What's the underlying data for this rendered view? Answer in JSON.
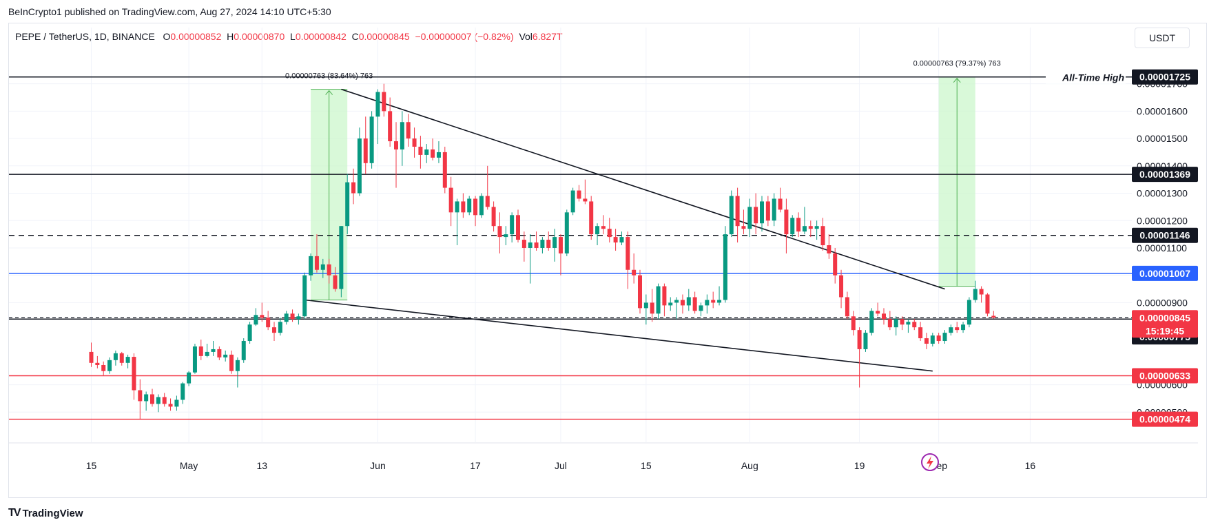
{
  "header": {
    "publish_text": "BeInCrypto1 published on TradingView.com, Aug 27, 2024 14:10 UTC+5:30",
    "symbol": "PEPE / TetherUS, 1D, BINANCE",
    "o_label": "O",
    "o_value": "0.00000852",
    "h_label": "H",
    "h_value": "0.00000870",
    "l_label": "L",
    "l_value": "0.00000842",
    "c_label": "C",
    "c_value": "0.00000845",
    "change": "−0.00000007 (−0.82%)",
    "vol_label": "Vol",
    "vol_value": "6.827T",
    "currency": "USDT"
  },
  "footer": {
    "brand": "TradingView",
    "logo": "TV"
  },
  "colors": {
    "up": "#089981",
    "down": "#f23645",
    "blue": "#2962ff",
    "green_box": "#ccf7cc",
    "green_line": "#4caf50"
  },
  "chart_data": {
    "type": "candlestick",
    "y_axis": {
      "min": 3.9e-06,
      "max": 1.83e-05,
      "tick_values": [
        5e-06,
        6e-06,
        9e-06,
        1e-05,
        1.1e-05,
        1.2e-05,
        1.3e-05,
        1.4e-05,
        1.5e-05,
        1.6e-05,
        1.7e-05
      ],
      "tick_labels": [
        "0.00000500",
        "0.00000600",
        "0.00000900",
        "0.00001000",
        "0.00001100",
        "0.00001200",
        "0.00001300",
        "0.00001400",
        "0.00001500",
        "0.00001600",
        "0.00001700"
      ]
    },
    "x_axis": {
      "ticks": [
        {
          "day": 0,
          "label": "15"
        },
        {
          "day": 16,
          "label": "May"
        },
        {
          "day": 28,
          "label": "13"
        },
        {
          "day": 47,
          "label": "Jun"
        },
        {
          "day": 63,
          "label": "17"
        },
        {
          "day": 77,
          "label": "Jul"
        },
        {
          "day": 91,
          "label": "15"
        },
        {
          "day": 108,
          "label": "Aug"
        },
        {
          "day": 126,
          "label": "19"
        },
        {
          "day": 139,
          "label": "Sep"
        },
        {
          "day": 154,
          "label": "16"
        }
      ]
    },
    "candles": [
      [
        7.2e-06,
        7.54e-06,
        6.65e-06,
        6.8e-06
      ],
      [
        6.8e-06,
        7.05e-06,
        6.6e-06,
        6.72e-06
      ],
      [
        6.72e-06,
        6.85e-06,
        6.35e-06,
        6.5e-06
      ],
      [
        6.5e-06,
        7e-06,
        6.4e-06,
        6.9e-06
      ],
      [
        6.9e-06,
        7.25e-06,
        6.7e-06,
        7.15e-06
      ],
      [
        7.15e-06,
        7.2e-06,
        6.7e-06,
        6.8e-06
      ],
      [
        6.8e-06,
        7.1e-06,
        6.6e-06,
        7.02e-06
      ],
      [
        7.02e-06,
        7.15e-06,
        5.45e-06,
        5.8e-06
      ],
      [
        5.8e-06,
        6.2e-06,
        4.75e-06,
        5.4e-06
      ],
      [
        5.4e-06,
        5.75e-06,
        5.05e-06,
        5.65e-06
      ],
      [
        5.65e-06,
        5.85e-06,
        5.2e-06,
        5.3e-06
      ],
      [
        5.3e-06,
        5.65e-06,
        5e-06,
        5.55e-06
      ],
      [
        5.55e-06,
        5.7e-06,
        5.2e-06,
        5.3e-06
      ],
      [
        5.3e-06,
        5.5e-06,
        5.05e-06,
        5.2e-06
      ],
      [
        5.2e-06,
        5.6e-06,
        5.05e-06,
        5.45e-06
      ],
      [
        5.45e-06,
        6.1e-06,
        5.3e-06,
        6.05e-06
      ],
      [
        6.05e-06,
        6.5e-06,
        5.95e-06,
        6.45e-06
      ],
      [
        6.45e-06,
        7.5e-06,
        6.4e-06,
        7.4e-06
      ],
      [
        7.4e-06,
        7.65e-06,
        6.9e-06,
        7.05e-06
      ],
      [
        7.05e-06,
        7.5e-06,
        7e-06,
        7.2e-06
      ],
      [
        7.2e-06,
        7.6e-06,
        7.05e-06,
        7.3e-06
      ],
      [
        7.3e-06,
        7.4e-06,
        6.9e-06,
        7e-06
      ],
      [
        7e-06,
        7.25e-06,
        6.85e-06,
        7.1e-06
      ],
      [
        7.1e-06,
        7.25e-06,
        6.4e-06,
        6.5e-06
      ],
      [
        6.5e-06,
        7e-06,
        5.9e-06,
        6.9e-06
      ],
      [
        6.9e-06,
        7.7e-06,
        6.8e-06,
        7.6e-06
      ],
      [
        7.6e-06,
        8.3e-06,
        7.5e-06,
        8.2e-06
      ],
      [
        8.2e-06,
        8.8e-06,
        8.15e-06,
        8.55e-06
      ],
      [
        8.55e-06,
        9e-06,
        8.3e-06,
        8.45e-06
      ],
      [
        8.45e-06,
        8.7e-06,
        8e-06,
        8.1e-06
      ],
      [
        8.1e-06,
        8.3e-06,
        7.6e-06,
        7.9e-06
      ],
      [
        7.9e-06,
        8.45e-06,
        7.8e-06,
        8.3e-06
      ],
      [
        8.3e-06,
        8.7e-06,
        8.2e-06,
        8.6e-06
      ],
      [
        8.6e-06,
        8.75e-06,
        8.3e-06,
        8.4e-06
      ],
      [
        8.4e-06,
        8.6e-06,
        8.2e-06,
        8.5e-06
      ],
      [
        8.5e-06,
        1.01e-05,
        8.4e-06,
        1e-05
      ],
      [
        1e-05,
        1.08e-05,
        9.8e-06,
        1.07e-05
      ],
      [
        1.07e-05,
        1.15e-05,
        1.01e-05,
        1.02e-05
      ],
      [
        1.02e-05,
        1.06e-05,
        9.9e-06,
        1.04e-05
      ],
      [
        1.04e-05,
        1.06e-05,
        9.7e-06,
        1e-05
      ],
      [
        1e-05,
        1.03e-05,
        9.4e-06,
        9.5e-06
      ],
      [
        9.5e-06,
        1.18e-05,
        9.2e-06,
        1.18e-05
      ],
      [
        1.18e-05,
        1.37e-05,
        1.15e-05,
        1.34e-05
      ],
      [
        1.34e-05,
        1.39e-05,
        1.26e-05,
        1.3e-05
      ],
      [
        1.3e-05,
        1.54e-05,
        1.29e-05,
        1.5e-05
      ],
      [
        1.5e-05,
        1.58e-05,
        1.37e-05,
        1.41e-05
      ],
      [
        1.41e-05,
        1.6e-05,
        1.39e-05,
        1.58e-05
      ],
      [
        1.58e-05,
        1.68e-05,
        1.48e-05,
        1.67e-05
      ],
      [
        1.67e-05,
        1.7e-05,
        1.58e-05,
        1.6e-05
      ],
      [
        1.6e-05,
        1.65e-05,
        1.47e-05,
        1.49e-05
      ],
      [
        1.49e-05,
        1.56e-05,
        1.32e-05,
        1.46e-05
      ],
      [
        1.46e-05,
        1.6e-05,
        1.4e-05,
        1.56e-05
      ],
      [
        1.56e-05,
        1.59e-05,
        1.47e-05,
        1.5e-05
      ],
      [
        1.5e-05,
        1.54e-05,
        1.43e-05,
        1.47e-05
      ],
      [
        1.47e-05,
        1.51e-05,
        1.39e-05,
        1.44e-05
      ],
      [
        1.44e-05,
        1.48e-05,
        1.41e-05,
        1.46e-05
      ],
      [
        1.46e-05,
        1.5e-05,
        1.42e-05,
        1.43e-05
      ],
      [
        1.43e-05,
        1.49e-05,
        1.41e-05,
        1.45e-05
      ],
      [
        1.45e-05,
        1.47e-05,
        1.3e-05,
        1.32e-05
      ],
      [
        1.32e-05,
        1.36e-05,
        1.18e-05,
        1.23e-05
      ],
      [
        1.23e-05,
        1.28e-05,
        1.11e-05,
        1.27e-05
      ],
      [
        1.27e-05,
        1.3e-05,
        1.21e-05,
        1.23e-05
      ],
      [
        1.23e-05,
        1.29e-05,
        1.22e-05,
        1.28e-05
      ],
      [
        1.28e-05,
        1.29e-05,
        1.18e-05,
        1.22e-05
      ],
      [
        1.22e-05,
        1.3e-05,
        1.21e-05,
        1.29e-05
      ],
      [
        1.29e-05,
        1.4e-05,
        1.24e-05,
        1.25e-05
      ],
      [
        1.25e-05,
        1.27e-05,
        1.16e-05,
        1.18e-05
      ],
      [
        1.18e-05,
        1.23e-05,
        1.08e-05,
        1.14e-05
      ],
      [
        1.14e-05,
        1.18e-05,
        1.11e-05,
        1.15e-05
      ],
      [
        1.15e-05,
        1.23e-05,
        1.12e-05,
        1.22e-05
      ],
      [
        1.22e-05,
        1.24e-05,
        1.12e-05,
        1.13e-05
      ],
      [
        1.13e-05,
        1.16e-05,
        1.05e-05,
        1.1e-05
      ],
      [
        1.1e-05,
        1.15e-05,
        9.7e-06,
        1.12e-05
      ],
      [
        1.12e-05,
        1.16e-05,
        1.09e-05,
        1.1e-05
      ],
      [
        1.1e-05,
        1.14e-05,
        1.08e-05,
        1.13e-05
      ],
      [
        1.13e-05,
        1.16e-05,
        1.09e-05,
        1.1e-05
      ],
      [
        1.1e-05,
        1.17e-05,
        1.05e-05,
        1.14e-05
      ],
      [
        1.14e-05,
        1.15e-05,
        1e-05,
        1.08e-05
      ],
      [
        1.08e-05,
        1.24e-05,
        1.07e-05,
        1.23e-05
      ],
      [
        1.23e-05,
        1.32e-05,
        1.22e-05,
        1.31e-05
      ],
      [
        1.31e-05,
        1.33e-05,
        1.27e-05,
        1.28e-05
      ],
      [
        1.28e-05,
        1.35e-05,
        1.26e-05,
        1.27e-05
      ],
      [
        1.27e-05,
        1.29e-05,
        1.13e-05,
        1.15e-05
      ],
      [
        1.15e-05,
        1.19e-05,
        1.11e-05,
        1.18e-05
      ],
      [
        1.18e-05,
        1.22e-05,
        1.15e-05,
        1.17e-05
      ],
      [
        1.17e-05,
        1.21e-05,
        1.12e-05,
        1.14e-05
      ],
      [
        1.14e-05,
        1.17e-05,
        1.09e-05,
        1.12e-05
      ],
      [
        1.12e-05,
        1.16e-05,
        1.11e-05,
        1.14e-05
      ],
      [
        1.14e-05,
        1.16e-05,
        9.5e-06,
        1.02e-05
      ],
      [
        1.02e-05,
        1.08e-05,
        9.7e-06,
        1e-05
      ],
      [
        1e-05,
        1.02e-05,
        8.6e-06,
        8.8e-06
      ],
      [
        8.8e-06,
        9.3e-06,
        8.2e-06,
        9e-06
      ],
      [
        9e-06,
        9.5e-06,
        8.3e-06,
        8.6e-06
      ],
      [
        8.6e-06,
        9.7e-06,
        8.4e-06,
        9.6e-06
      ],
      [
        9.6e-06,
        9.7e-06,
        8.5e-06,
        8.9e-06
      ],
      [
        8.9e-06,
        9.2e-06,
        8.7e-06,
        9e-06
      ],
      [
        9e-06,
        9.2e-06,
        8.4e-06,
        9.1e-06
      ],
      [
        9.1e-06,
        9.3e-06,
        8.6e-06,
        8.9e-06
      ],
      [
        8.9e-06,
        9.5e-06,
        8.7e-06,
        9.2e-06
      ],
      [
        9.2e-06,
        9.4e-06,
        8.6e-06,
        8.7e-06
      ],
      [
        8.7e-06,
        9e-06,
        8.5e-06,
        8.9e-06
      ],
      [
        8.9e-06,
        9.3e-06,
        8.6e-06,
        9.1e-06
      ],
      [
        9.1e-06,
        9.4e-06,
        8.8e-06,
        9e-06
      ],
      [
        9e-06,
        9.6e-06,
        8.9e-06,
        9.1e-06
      ],
      [
        9.1e-06,
        1.18e-05,
        9e-06,
        1.15e-05
      ],
      [
        1.15e-05,
        1.31e-05,
        1.14e-05,
        1.29e-05
      ],
      [
        1.29e-05,
        1.32e-05,
        1.12e-05,
        1.18e-05
      ],
      [
        1.18e-05,
        1.24e-05,
        1.15e-05,
        1.17e-05
      ],
      [
        1.17e-05,
        1.28e-05,
        1.14e-05,
        1.25e-05
      ],
      [
        1.25e-05,
        1.3e-05,
        1.15e-05,
        1.19e-05
      ],
      [
        1.19e-05,
        1.29e-05,
        1.16e-05,
        1.27e-05
      ],
      [
        1.27e-05,
        1.29e-05,
        1.18e-05,
        1.2e-05
      ],
      [
        1.2e-05,
        1.3e-05,
        1.18e-05,
        1.28e-05
      ],
      [
        1.28e-05,
        1.32e-05,
        1.23e-05,
        1.24e-05
      ],
      [
        1.24e-05,
        1.28e-05,
        1.08e-05,
        1.15e-05
      ],
      [
        1.15e-05,
        1.22e-05,
        1.14e-05,
        1.21e-05
      ],
      [
        1.21e-05,
        1.23e-05,
        1.14e-05,
        1.16e-05
      ],
      [
        1.16e-05,
        1.25e-05,
        1.15e-05,
        1.18e-05
      ],
      [
        1.18e-05,
        1.2e-05,
        1.14e-05,
        1.17e-05
      ],
      [
        1.17e-05,
        1.2e-05,
        1.13e-05,
        1.18e-05
      ],
      [
        1.18e-05,
        1.21e-05,
        1.09e-05,
        1.11e-05
      ],
      [
        1.11e-05,
        1.15e-05,
        1.06e-05,
        1.08e-05
      ],
      [
        1.08e-05,
        1.1e-05,
        9.7e-06,
        1e-05
      ],
      [
        1e-05,
        1.02e-05,
        8.8e-06,
        9.2e-06
      ],
      [
        9.2e-06,
        9.4e-06,
        8.4e-06,
        8.5e-06
      ],
      [
        8.5e-06,
        8.7e-06,
        7.8e-06,
        8e-06
      ],
      [
        8e-06,
        8.1e-06,
        5.9e-06,
        7.3e-06
      ],
      [
        7.3e-06,
        8e-06,
        7.2e-06,
        7.9e-06
      ],
      [
        7.9e-06,
        8.8e-06,
        7.8e-06,
        8.7e-06
      ],
      [
        8.7e-06,
        9e-06,
        8.5e-06,
        8.6e-06
      ],
      [
        8.6e-06,
        8.8e-06,
        8.2e-06,
        8.4e-06
      ],
      [
        8.4e-06,
        8.7e-06,
        8e-06,
        8.1e-06
      ],
      [
        8.1e-06,
        8.5e-06,
        7.8e-06,
        8.4e-06
      ],
      [
        8.4e-06,
        8.5e-06,
        8e-06,
        8.2e-06
      ],
      [
        8.2e-06,
        8.4e-06,
        7.9e-06,
        8.3e-06
      ],
      [
        8.3e-06,
        8.4e-06,
        8e-06,
        8.1e-06
      ],
      [
        8.1e-06,
        8.3e-06,
        7.6e-06,
        7.7e-06
      ],
      [
        7.7e-06,
        7.9e-06,
        7.3e-06,
        7.5e-06
      ],
      [
        7.5e-06,
        7.9e-06,
        7.4e-06,
        7.8e-06
      ],
      [
        7.8e-06,
        7.9e-06,
        7.5e-06,
        7.6e-06
      ],
      [
        7.6e-06,
        8e-06,
        7.5e-06,
        7.9e-06
      ],
      [
        7.9e-06,
        8.2e-06,
        7.8e-06,
        8.1e-06
      ],
      [
        8.1e-06,
        8.3e-06,
        7.9e-06,
        8e-06
      ],
      [
        8e-06,
        8.3e-06,
        7.9e-06,
        8.2e-06
      ],
      [
        8.2e-06,
        9.2e-06,
        8.1e-06,
        9.1e-06
      ],
      [
        9.1e-06,
        9.8e-06,
        9e-06,
        9.5e-06
      ],
      [
        9.5e-06,
        9.6e-06,
        9e-06,
        9.3e-06
      ],
      [
        9.3e-06,
        9.35e-06,
        8.5e-06,
        8.6e-06
      ],
      [
        8.52e-06,
        8.7e-06,
        8.42e-06,
        8.45e-06
      ]
    ],
    "horizontal_levels": [
      {
        "value": 1.725e-05,
        "label": "0.00001725",
        "style": "solid",
        "color": "#131722",
        "tag_bg": "#131722"
      },
      {
        "value": 1.369e-05,
        "label": "0.00001369",
        "style": "solid",
        "color": "#131722",
        "tag_bg": "#131722"
      },
      {
        "value": 1.146e-05,
        "label": "0.00001146",
        "style": "dashed",
        "color": "#131722",
        "tag_bg": "#131722"
      },
      {
        "value": 1.007e-05,
        "label": "0.00001007",
        "style": "solid",
        "color": "#2962ff",
        "tag_bg": "#2962ff"
      },
      {
        "value": 8.4e-06,
        "label": "0.00000840",
        "style": "solid",
        "color": "#131722",
        "tag_bg": "#131722"
      },
      {
        "value": 6.33e-06,
        "label": "0.00000633",
        "style": "solid",
        "color": "#f23645",
        "tag_bg": "#f23645"
      },
      {
        "value": 4.74e-06,
        "label": "0.00000474",
        "style": "solid",
        "color": "#f23645",
        "tag_bg": "#f23645"
      }
    ],
    "extra_price_tags": [
      {
        "value": 7.75e-06,
        "label": "0.00000775",
        "tag_bg": "#131722"
      }
    ],
    "current_price": {
      "value": 8.45e-06,
      "label": "0.00000845",
      "countdown": "15:19:45",
      "color": "#f23645"
    },
    "annotations": [
      {
        "text": "All-Time High",
        "type": "level_label"
      },
      {
        "text": "0.00000763 (83.64%) 763",
        "type": "range_label",
        "from_day": 36,
        "to_day": 42,
        "y_low": 9.1e-06,
        "y_high": 1.68e-05
      },
      {
        "text": "0.00000763 (79.37%) 763",
        "type": "range_label",
        "from_day": 139,
        "to_day": 145,
        "y_low": 9.6e-06,
        "y_high": 1.725e-05
      }
    ],
    "trendlines": [
      {
        "name": "upper",
        "from": {
          "day": 41,
          "value": 1.68e-05
        },
        "to": {
          "day": 140,
          "value": 9.5e-06
        }
      },
      {
        "name": "lower",
        "from": {
          "day": 35,
          "value": 9.1e-06
        },
        "to": {
          "day": 138,
          "value": 6.5e-06
        }
      }
    ],
    "grid": true
  }
}
